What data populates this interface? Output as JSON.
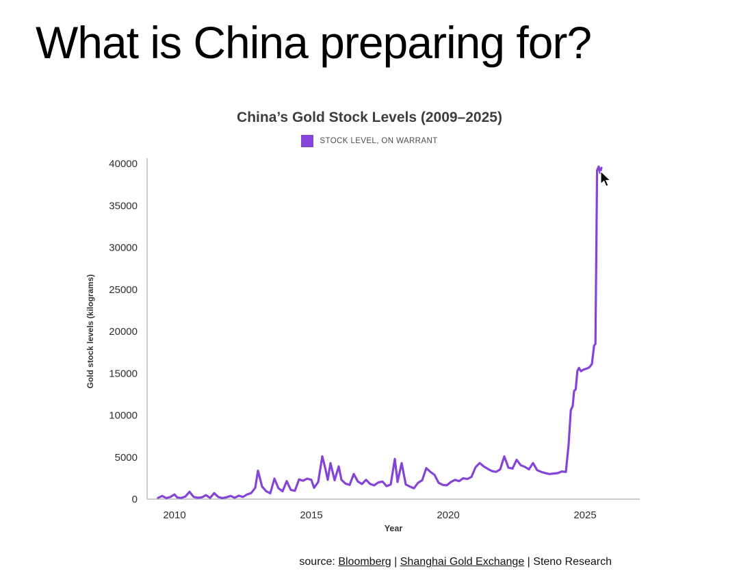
{
  "page": {
    "title": "What is China preparing for?",
    "cursor_icon": "arrow-cursor"
  },
  "chart": {
    "title": "China’s Gold Stock Levels (2009–2025)",
    "legend_label": "STOCK LEVEL, ON WARRANT",
    "y_axis_label": "Gold stock levels (kilograms)",
    "x_axis_label": "Year",
    "line_color": "#8544d8",
    "axis_color": "#cccccc",
    "tick_color": "#2e2e2e"
  },
  "source": {
    "prefix": "source: ",
    "link_bloomberg": "Bloomberg",
    "sep1": " | ",
    "link_sge": "Shanghai Gold Exchange",
    "sep2": " | ",
    "research": "Steno Research"
  },
  "chart_data": {
    "type": "line",
    "title": "China’s Gold Stock Levels (2009–2025)",
    "xlabel": "Year",
    "ylabel": "Gold stock levels (kilograms)",
    "xlim": [
      2009,
      2027
    ],
    "ylim": [
      0,
      40000
    ],
    "xticks": [
      2010,
      2015,
      2020,
      2025
    ],
    "yticks": [
      0,
      5000,
      10000,
      15000,
      20000,
      25000,
      30000,
      35000,
      40000
    ],
    "grid": false,
    "legend_position": "top",
    "series": [
      {
        "name": "STOCK LEVEL, ON WARRANT",
        "x": [
          2009.4,
          2009.55,
          2009.7,
          2009.85,
          2010.0,
          2010.1,
          2010.25,
          2010.4,
          2010.55,
          2010.7,
          2010.85,
          2011.0,
          2011.15,
          2011.3,
          2011.45,
          2011.6,
          2011.75,
          2011.9,
          2012.05,
          2012.2,
          2012.35,
          2012.5,
          2012.65,
          2012.8,
          2012.95,
          2013.05,
          2013.2,
          2013.35,
          2013.5,
          2013.65,
          2013.8,
          2013.95,
          2014.1,
          2014.25,
          2014.4,
          2014.55,
          2014.7,
          2014.85,
          2015.0,
          2015.1,
          2015.25,
          2015.4,
          2015.5,
          2015.6,
          2015.7,
          2015.85,
          2016.0,
          2016.1,
          2016.25,
          2016.4,
          2016.55,
          2016.7,
          2016.85,
          2017.0,
          2017.15,
          2017.3,
          2017.45,
          2017.6,
          2017.75,
          2017.9,
          2018.05,
          2018.15,
          2018.3,
          2018.45,
          2018.6,
          2018.75,
          2018.9,
          2019.05,
          2019.2,
          2019.35,
          2019.5,
          2019.65,
          2019.8,
          2019.95,
          2020.1,
          2020.25,
          2020.4,
          2020.55,
          2020.7,
          2020.85,
          2021.0,
          2021.15,
          2021.3,
          2021.45,
          2021.6,
          2021.75,
          2021.9,
          2022.05,
          2022.2,
          2022.35,
          2022.5,
          2022.65,
          2022.8,
          2022.95,
          2023.1,
          2023.25,
          2023.4,
          2023.55,
          2023.7,
          2023.85,
          2024.0,
          2024.15,
          2024.3,
          2024.4,
          2024.48,
          2024.55,
          2024.6,
          2024.66,
          2024.72,
          2024.78,
          2024.85,
          2024.95,
          2025.05,
          2025.15,
          2025.25,
          2025.33,
          2025.38,
          2025.44,
          2025.5,
          2025.55,
          2025.6
        ],
        "y": [
          150,
          380,
          120,
          260,
          560,
          200,
          150,
          320,
          880,
          260,
          160,
          210,
          480,
          150,
          720,
          260,
          130,
          220,
          380,
          160,
          420,
          260,
          560,
          720,
          1350,
          3400,
          1500,
          950,
          700,
          2450,
          1300,
          950,
          2150,
          1100,
          1000,
          2350,
          2200,
          2450,
          2300,
          1350,
          2050,
          5100,
          3800,
          2300,
          4300,
          2250,
          3900,
          2300,
          1850,
          1700,
          3000,
          2100,
          1800,
          2300,
          1800,
          1650,
          2000,
          2100,
          1550,
          1750,
          4800,
          2050,
          4300,
          1750,
          1500,
          1300,
          1950,
          2250,
          3700,
          3250,
          2900,
          1950,
          1700,
          1650,
          2050,
          2300,
          2150,
          2500,
          2400,
          2650,
          3800,
          4300,
          3900,
          3600,
          3350,
          3250,
          3550,
          5100,
          3750,
          3650,
          4700,
          4050,
          3850,
          3550,
          4300,
          3450,
          3250,
          3100,
          3000,
          3050,
          3100,
          3300,
          3250,
          6500,
          10600,
          11100,
          12900,
          13100,
          15300,
          15650,
          15250,
          15450,
          15550,
          15700,
          16100,
          18300,
          18500,
          39200,
          39650,
          38900,
          39500
        ]
      }
    ]
  }
}
